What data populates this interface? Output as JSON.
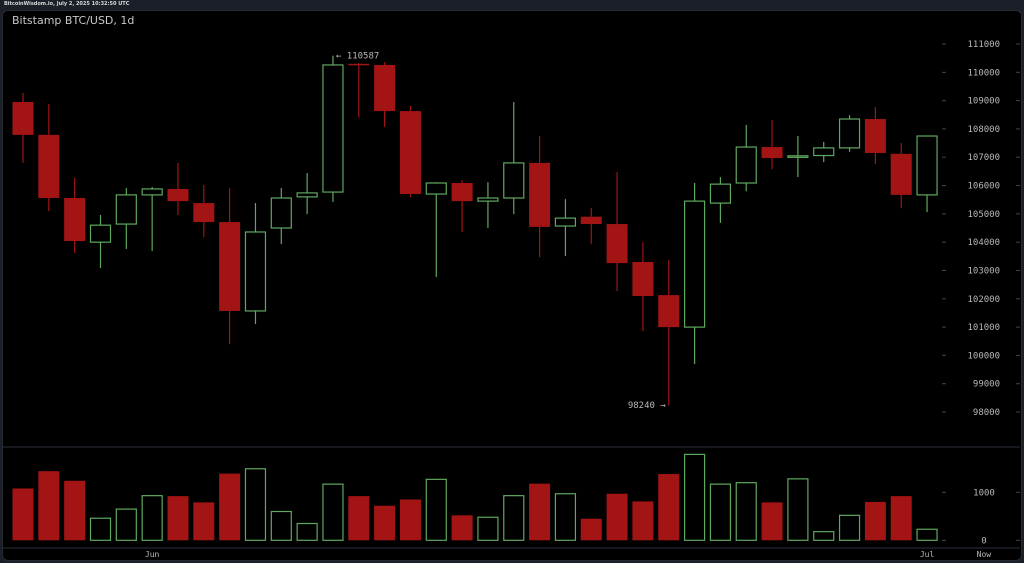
{
  "header": {
    "source_line": "BitcoinWisdom.io, July 2, 2025 10:32:50 UTC"
  },
  "chart_data": {
    "type": "candlestick",
    "title": "Bitstamp BTC/USD, 1d",
    "colors": {
      "up": "#5fa85f",
      "down": "#a31515",
      "background": "#000000",
      "text": "#b8b8b8"
    },
    "price_axis": {
      "ticks": [
        98000,
        99000,
        100000,
        101000,
        102000,
        103000,
        104000,
        105000,
        106000,
        107000,
        108000,
        109000,
        110000,
        111000
      ],
      "range": [
        97800,
        111400
      ],
      "position": "right"
    },
    "volume_axis": {
      "ticks": [
        0,
        1000
      ],
      "range": [
        0,
        1950
      ]
    },
    "x_labels": [
      {
        "label": "Jun",
        "index": 5
      },
      {
        "label": "Jul",
        "index": 35
      },
      {
        "label": "Now",
        "index": 37.2
      }
    ],
    "annotations": {
      "high": {
        "text": "← 110587",
        "value": 110587,
        "index": 12
      },
      "low": {
        "text": "98240 →",
        "value": 98240,
        "index": 25
      }
    },
    "candles": [
      {
        "o": 108950,
        "c": 107790,
        "h": 109270,
        "l": 106800,
        "v": 1080
      },
      {
        "o": 107790,
        "c": 105560,
        "h": 108880,
        "l": 105100,
        "v": 1440
      },
      {
        "o": 105560,
        "c": 104040,
        "h": 106270,
        "l": 103620,
        "v": 1240
      },
      {
        "o": 104000,
        "c": 104600,
        "h": 104960,
        "l": 103090,
        "v": 460
      },
      {
        "o": 104640,
        "c": 105670,
        "h": 105910,
        "l": 103760,
        "v": 650
      },
      {
        "o": 105670,
        "c": 105880,
        "h": 105950,
        "l": 103690,
        "v": 930
      },
      {
        "o": 105880,
        "c": 105450,
        "h": 106800,
        "l": 104960,
        "v": 920
      },
      {
        "o": 105380,
        "c": 104710,
        "h": 106020,
        "l": 104180,
        "v": 790
      },
      {
        "o": 104710,
        "c": 101570,
        "h": 105910,
        "l": 100400,
        "v": 1390
      },
      {
        "o": 101570,
        "c": 104360,
        "h": 105380,
        "l": 101110,
        "v": 1490
      },
      {
        "o": 104500,
        "c": 105560,
        "h": 105910,
        "l": 103930,
        "v": 600
      },
      {
        "o": 105600,
        "c": 105740,
        "h": 106440,
        "l": 104990,
        "v": 350
      },
      {
        "o": 105770,
        "c": 110260,
        "h": 110587,
        "l": 105420,
        "v": 1170
      },
      {
        "o": 110300,
        "c": 110250,
        "h": 110330,
        "l": 108400,
        "v": 920
      },
      {
        "o": 110260,
        "c": 108630,
        "h": 110360,
        "l": 108070,
        "v": 720
      },
      {
        "o": 108630,
        "c": 105700,
        "h": 108810,
        "l": 105600,
        "v": 850
      },
      {
        "o": 105700,
        "c": 106090,
        "h": 106120,
        "l": 102770,
        "v": 1270
      },
      {
        "o": 106090,
        "c": 105450,
        "h": 106190,
        "l": 104360,
        "v": 520
      },
      {
        "o": 105450,
        "c": 105560,
        "h": 106120,
        "l": 104500,
        "v": 480
      },
      {
        "o": 105560,
        "c": 106800,
        "h": 108950,
        "l": 104990,
        "v": 930
      },
      {
        "o": 106800,
        "c": 104540,
        "h": 107750,
        "l": 103470,
        "v": 1180
      },
      {
        "o": 104570,
        "c": 104850,
        "h": 105520,
        "l": 103510,
        "v": 970
      },
      {
        "o": 104900,
        "c": 104640,
        "h": 105210,
        "l": 103930,
        "v": 450
      },
      {
        "o": 104640,
        "c": 103260,
        "h": 106480,
        "l": 102270,
        "v": 970
      },
      {
        "o": 103300,
        "c": 102100,
        "h": 104000,
        "l": 100860,
        "v": 810
      },
      {
        "o": 102130,
        "c": 101000,
        "h": 103370,
        "l": 98240,
        "v": 1380
      },
      {
        "o": 101000,
        "c": 105450,
        "h": 106090,
        "l": 99700,
        "v": 1790
      },
      {
        "o": 105380,
        "c": 106050,
        "h": 106300,
        "l": 104680,
        "v": 1170
      },
      {
        "o": 106090,
        "c": 107360,
        "h": 108140,
        "l": 105800,
        "v": 1200
      },
      {
        "o": 107360,
        "c": 106970,
        "h": 108310,
        "l": 106580,
        "v": 790
      },
      {
        "o": 107020,
        "c": 107050,
        "h": 107750,
        "l": 106300,
        "v": 1280
      },
      {
        "o": 107060,
        "c": 107330,
        "h": 107540,
        "l": 106830,
        "v": 180
      },
      {
        "o": 107330,
        "c": 108350,
        "h": 108490,
        "l": 107190,
        "v": 520
      },
      {
        "o": 108350,
        "c": 107150,
        "h": 108770,
        "l": 106760,
        "v": 800
      },
      {
        "o": 107120,
        "c": 105670,
        "h": 107500,
        "l": 105200,
        "v": 920
      },
      {
        "o": 105670,
        "c": 107750,
        "h": 107750,
        "l": 105060,
        "v": 230
      }
    ]
  }
}
